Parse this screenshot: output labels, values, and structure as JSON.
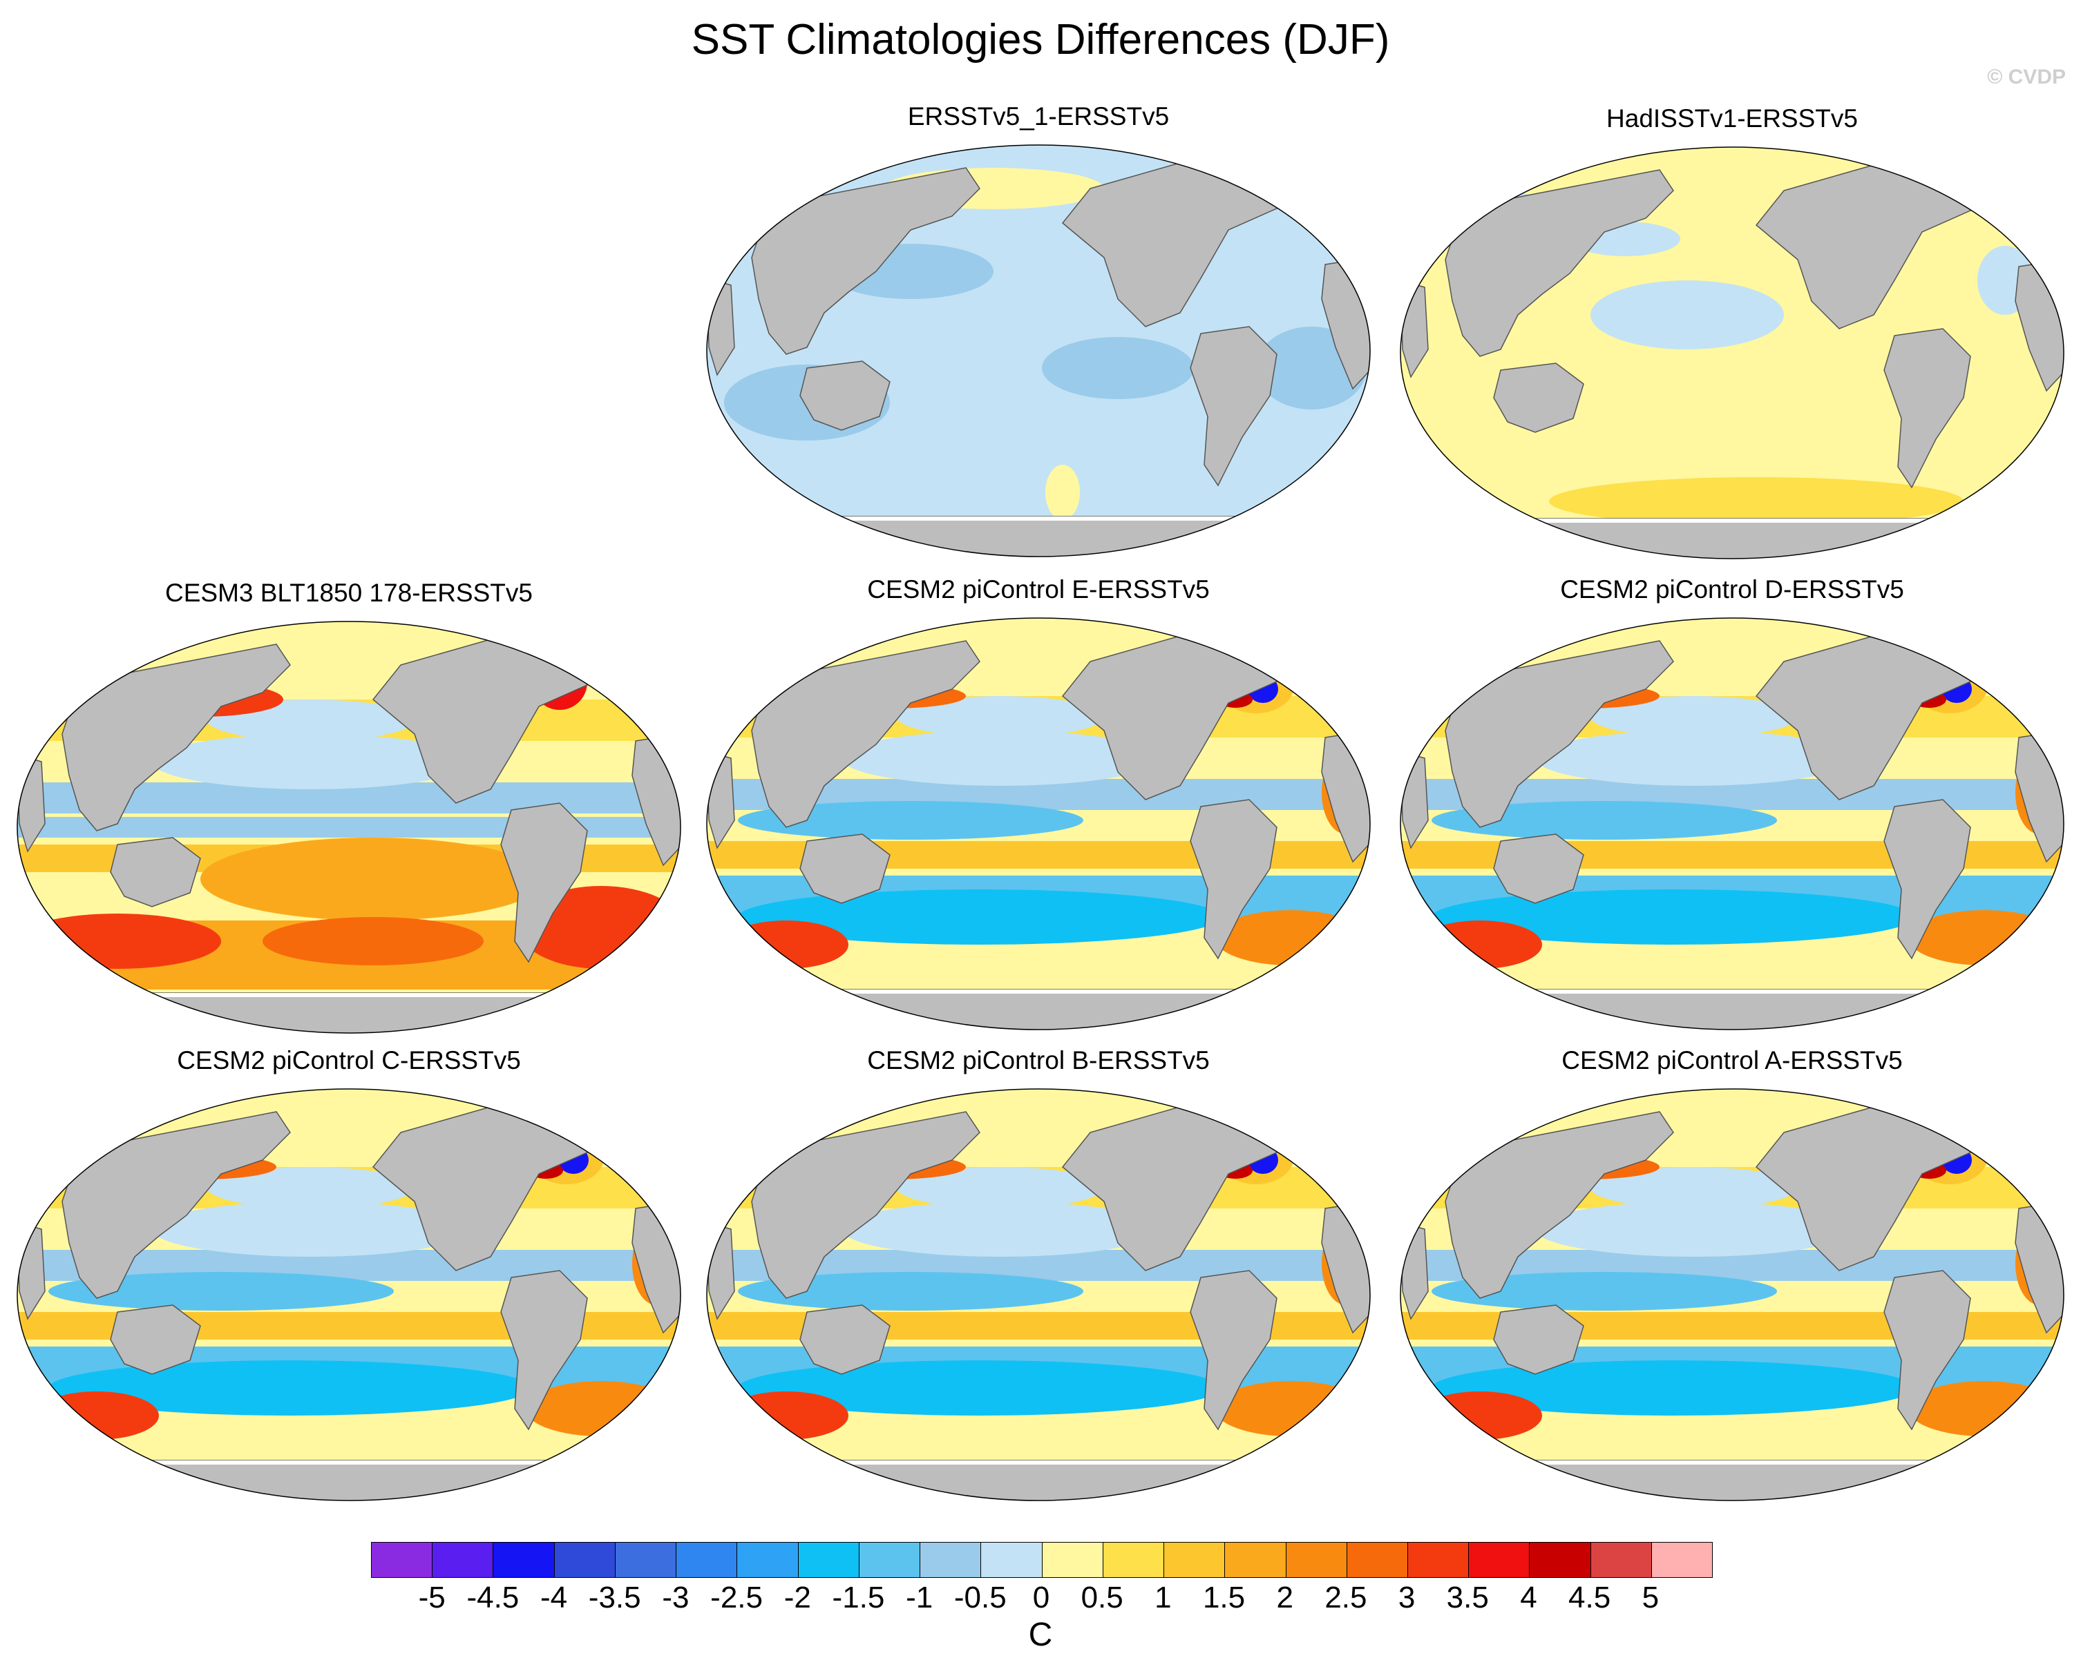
{
  "title": "SST Climatologies Differences (DJF)",
  "watermark": "© CVDP",
  "panels": [
    {
      "title": "ERSSTv5_1-ERSSTv5",
      "pattern": "uniform-cool"
    },
    {
      "title": "HadISSTv1-ERSSTv5",
      "pattern": "uniform-warm"
    },
    {
      "title": "CESM3 BLT1850 178-ERSSTv5",
      "pattern": "model-warm"
    },
    {
      "title": "CESM2 piControl E-ERSSTv5",
      "pattern": "model"
    },
    {
      "title": "CESM2 piControl D-ERSSTv5",
      "pattern": "model"
    },
    {
      "title": "CESM2 piControl C-ERSSTv5",
      "pattern": "model"
    },
    {
      "title": "CESM2 piControl B-ERSSTv5",
      "pattern": "model"
    },
    {
      "title": "CESM2 piControl A-ERSSTv5",
      "pattern": "model"
    }
  ],
  "colorbar": {
    "units": "C",
    "labels": [
      "-5",
      "-4.5",
      "-4",
      "-3.5",
      "-3",
      "-2.5",
      "-2",
      "-1.5",
      "-1",
      "-0.5",
      "0",
      "0.5",
      "1",
      "1.5",
      "2",
      "2.5",
      "3",
      "3.5",
      "4",
      "4.5",
      "5"
    ],
    "colors": [
      "#8a2be2",
      "#5a1ef0",
      "#1414f5",
      "#2f4ad8",
      "#3d6ee0",
      "#2f86f0",
      "#2ea2f5",
      "#0fc0f5",
      "#5cc3ee",
      "#9acbea",
      "#c3e2f5",
      "#fff8a0",
      "#fde04a",
      "#fcc72e",
      "#fba91c",
      "#f98a10",
      "#f76a0c",
      "#f43b10",
      "#f01010",
      "#c80000",
      "#dc4444",
      "#ffb0b0"
    ]
  },
  "colors": {
    "land": "#bdbdbd",
    "coast": "#555555",
    "ice_fringe": "#ffffff"
  }
}
